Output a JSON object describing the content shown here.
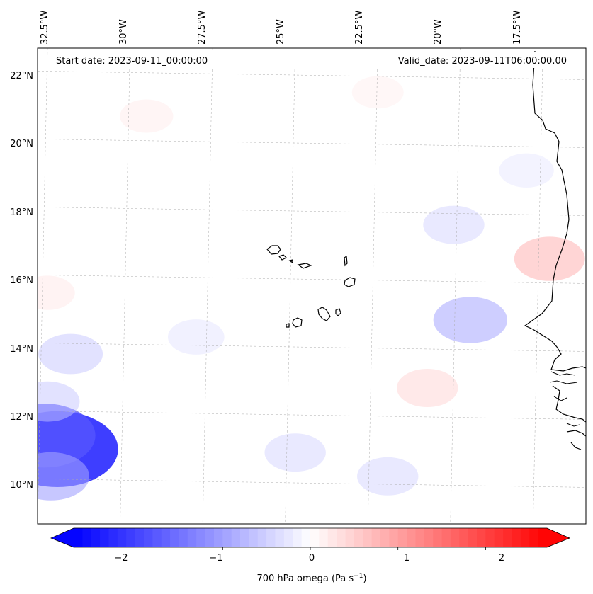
{
  "map": {
    "start_label": "Start date: 2023-09-11_00:00:00",
    "valid_label": "Valid_date: 2023-09-11T06:00:00.00",
    "lon_ticks": [
      "32.5°W",
      "30°W",
      "27.5°W",
      "25°W",
      "22.5°W",
      "20°W",
      "17.5°W"
    ],
    "lat_ticks": [
      "22°N",
      "20°N",
      "18°N",
      "16°N",
      "14°N",
      "12°N",
      "10°N"
    ],
    "land_features": [
      "west-africa-coastline",
      "cabo-verde-islands"
    ]
  },
  "colorbar": {
    "ticks": [
      "−2",
      "−1",
      "0",
      "1",
      "2"
    ],
    "label_main": "700 hPa omega (Pa s",
    "label_sup": "−1",
    "label_end": ")",
    "range": [
      -2.7,
      2.7
    ],
    "colormap": "bwr",
    "colors": {
      "min": "#0000ff",
      "mid": "#ffffff",
      "max": "#ff0000"
    }
  },
  "chart_data": {
    "type": "heatmap",
    "variable": "700 hPa omega",
    "units": "Pa s−1",
    "lon_range": [
      -32.8,
      -16.2
    ],
    "lat_range": [
      8.8,
      22.8
    ],
    "vmin": -2.7,
    "vmax": 2.7,
    "features": [
      {
        "lat": 11.0,
        "lon": -32.2,
        "value": -2.4
      },
      {
        "lat": 11.4,
        "lon": -32.6,
        "value": -1.8
      },
      {
        "lat": 10.2,
        "lon": -32.4,
        "value": -1.0
      },
      {
        "lat": 12.4,
        "lon": -32.5,
        "value": -0.6
      },
      {
        "lat": 16.6,
        "lon": -17.3,
        "value": 0.8
      },
      {
        "lat": 13.8,
        "lon": -31.8,
        "value": -0.6
      },
      {
        "lat": 14.8,
        "lon": -19.7,
        "value": -0.9
      },
      {
        "lat": 17.6,
        "lon": -20.2,
        "value": -0.5
      },
      {
        "lat": 12.8,
        "lon": -21.0,
        "value": 0.5
      },
      {
        "lat": 10.9,
        "lon": -25.0,
        "value": -0.5
      },
      {
        "lat": 10.2,
        "lon": -22.2,
        "value": -0.5
      },
      {
        "lat": 14.3,
        "lon": -28.0,
        "value": -0.35
      },
      {
        "lat": 15.6,
        "lon": -32.5,
        "value": 0.3
      },
      {
        "lat": 20.8,
        "lon": -29.5,
        "value": 0.25
      },
      {
        "lat": 21.5,
        "lon": -22.5,
        "value": 0.2
      },
      {
        "lat": 19.2,
        "lon": -18.0,
        "value": -0.3
      }
    ]
  }
}
